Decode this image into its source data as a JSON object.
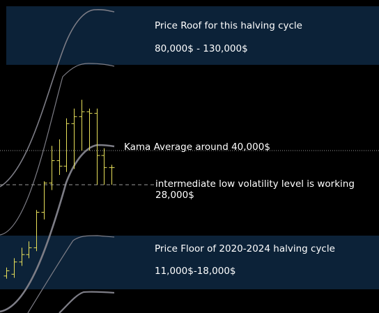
{
  "chart_data": {
    "type": "ohlc",
    "y_scale": "log",
    "colors": {
      "background": "#000000",
      "zone_fill": "#0c2238",
      "candles": "#e8e05a",
      "channel_lines": "#7d7d86",
      "reference_lines": "#9a9a9a",
      "text": "#ffffff"
    },
    "zones": [
      {
        "name": "roof",
        "title": "Price Roof for this halving cycle",
        "range_label": "80,000$ - 130,000$",
        "low": 80000,
        "high": 130000
      },
      {
        "name": "floor",
        "title": "Price Floor of 2020-2024 halving cycle",
        "range_label": "11,000$-18,000$",
        "low": 11000,
        "high": 18000
      }
    ],
    "reference_lines": [
      {
        "name": "kama",
        "label": "Kama Average around 40,000$",
        "value": 40000,
        "style": "dotted"
      },
      {
        "name": "low-vol",
        "label": "intermediate low volatility level is working",
        "value_label": "28,000$",
        "value": 28000,
        "style": "dashed"
      }
    ],
    "candles": [
      {
        "low": 10500,
        "high": 11800,
        "open": 10800,
        "close": 11400
      },
      {
        "low": 10600,
        "high": 13000,
        "open": 11000,
        "close": 12500
      },
      {
        "low": 12000,
        "high": 14500,
        "open": 12500,
        "close": 13500
      },
      {
        "low": 13000,
        "high": 15500,
        "open": 13500,
        "close": 14500
      },
      {
        "low": 14000,
        "high": 21500,
        "open": 14500,
        "close": 21000
      },
      {
        "low": 19500,
        "high": 29000,
        "open": 21000,
        "close": 28500
      },
      {
        "low": 26500,
        "high": 42000,
        "open": 28500,
        "close": 36000
      },
      {
        "low": 31000,
        "high": 45000,
        "open": 36000,
        "close": 34000
      },
      {
        "low": 32000,
        "high": 56000,
        "open": 34000,
        "close": 53000
      },
      {
        "low": 33000,
        "high": 62000,
        "open": 53000,
        "close": 57000
      },
      {
        "low": 40000,
        "high": 68000,
        "open": 57000,
        "close": 60000
      },
      {
        "low": 40000,
        "high": 62000,
        "open": 60000,
        "close": 59000
      },
      {
        "low": 28000,
        "high": 62000,
        "open": 59000,
        "close": 38000
      },
      {
        "low": 28000,
        "high": 41000,
        "open": 38000,
        "close": 33500
      },
      {
        "low": 28000,
        "high": 34500,
        "open": 33500,
        "close": 33500
      }
    ]
  }
}
